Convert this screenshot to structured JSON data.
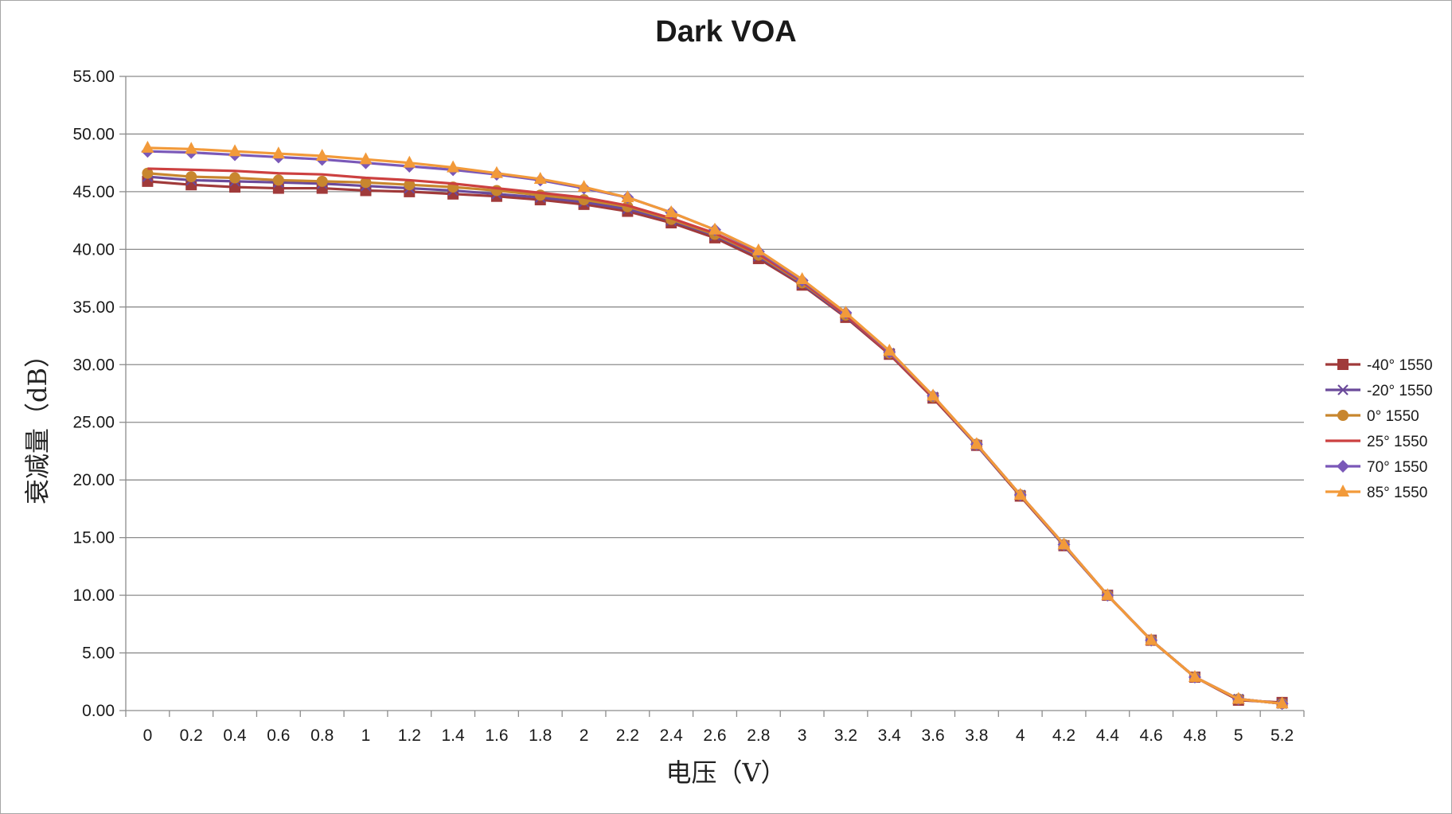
{
  "chart_data": {
    "type": "line",
    "title": "Dark VOA",
    "xlabel": "电压（V）",
    "ylabel": "衰减量（dB）",
    "ylim": [
      0,
      55
    ],
    "y_ticks": [
      "0.00",
      "5.00",
      "10.00",
      "15.00",
      "20.00",
      "25.00",
      "30.00",
      "35.00",
      "40.00",
      "45.00",
      "50.00",
      "55.00"
    ],
    "categories": [
      "0",
      "0.2",
      "0.4",
      "0.6",
      "0.8",
      "1",
      "1.2",
      "1.4",
      "1.6",
      "1.8",
      "2",
      "2.2",
      "2.4",
      "2.6",
      "2.8",
      "3",
      "3.2",
      "3.4",
      "3.6",
      "3.8",
      "4",
      "4.2",
      "4.4",
      "4.6",
      "4.8",
      "5",
      "5.2"
    ],
    "grid": true,
    "legend_position": "right",
    "series": [
      {
        "name": "-40° 1550",
        "color": "#a03a3a",
        "marker": "square",
        "values": [
          45.9,
          45.6,
          45.4,
          45.3,
          45.3,
          45.1,
          45.0,
          44.8,
          44.6,
          44.3,
          43.9,
          43.3,
          42.3,
          41.0,
          39.2,
          36.9,
          34.1,
          30.9,
          27.1,
          23.0,
          18.6,
          14.3,
          10.0,
          6.1,
          2.9,
          0.9,
          0.7
        ]
      },
      {
        "name": "-20° 1550",
        "color": "#6b4a9a",
        "marker": "x",
        "values": [
          46.3,
          46.0,
          45.9,
          45.8,
          45.7,
          45.5,
          45.3,
          45.1,
          44.8,
          44.5,
          44.1,
          43.5,
          42.5,
          41.2,
          39.4,
          37.0,
          34.2,
          31.0,
          27.2,
          23.0,
          18.7,
          14.3,
          10.0,
          6.1,
          2.9,
          1.0,
          0.6
        ]
      },
      {
        "name": "0° 1550",
        "color": "#c8862e",
        "marker": "circle",
        "values": [
          46.6,
          46.3,
          46.2,
          46.0,
          45.9,
          45.8,
          45.6,
          45.4,
          45.1,
          44.7,
          44.3,
          43.7,
          42.6,
          41.3,
          39.5,
          37.1,
          34.3,
          31.0,
          27.2,
          23.1,
          18.7,
          14.4,
          10.0,
          6.1,
          2.9,
          1.0,
          0.6
        ]
      },
      {
        "name": "25° 1550",
        "color": "#cc4040",
        "marker": "none",
        "values": [
          47.0,
          46.9,
          46.8,
          46.6,
          46.5,
          46.2,
          46.0,
          45.7,
          45.3,
          44.9,
          44.5,
          43.8,
          42.7,
          41.4,
          39.6,
          37.2,
          34.3,
          31.0,
          27.2,
          23.1,
          18.7,
          14.4,
          10.0,
          6.1,
          2.9,
          1.0,
          0.6
        ]
      },
      {
        "name": "70° 1550",
        "color": "#7a58b8",
        "marker": "diamond",
        "values": [
          48.5,
          48.4,
          48.2,
          48.0,
          47.8,
          47.5,
          47.2,
          46.9,
          46.5,
          46.0,
          45.3,
          44.5,
          43.2,
          41.7,
          39.8,
          37.3,
          34.5,
          31.1,
          27.3,
          23.1,
          18.7,
          14.4,
          10.0,
          6.1,
          2.9,
          1.0,
          0.6
        ]
      },
      {
        "name": "85° 1550",
        "color": "#f29a3a",
        "marker": "triangle",
        "values": [
          48.8,
          48.7,
          48.5,
          48.3,
          48.1,
          47.8,
          47.5,
          47.1,
          46.6,
          46.1,
          45.4,
          44.5,
          43.2,
          41.7,
          39.9,
          37.4,
          34.5,
          31.2,
          27.3,
          23.1,
          18.7,
          14.4,
          10.0,
          6.1,
          2.9,
          1.0,
          0.6
        ]
      }
    ]
  }
}
